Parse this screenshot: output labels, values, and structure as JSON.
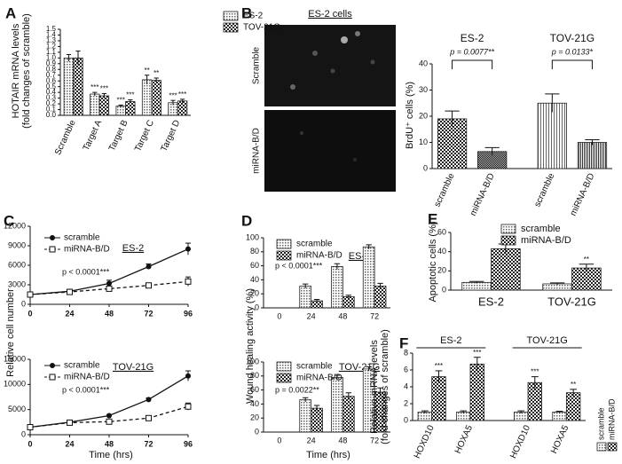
{
  "chart_data": [
    {
      "panel": "A",
      "type": "bar",
      "categories": [
        "Scramble",
        "Target A",
        "Target B",
        "Target C",
        "Target D"
      ],
      "series": [
        {
          "name": "ES-2",
          "fill": "dots",
          "values": [
            1.0,
            0.37,
            0.16,
            0.62,
            0.22
          ],
          "errors": [
            0.06,
            0.03,
            0.02,
            0.08,
            0.04
          ],
          "sig": [
            null,
            "***",
            "***",
            "**",
            "***"
          ]
        },
        {
          "name": "TOV-21G",
          "fill": "checks",
          "values": [
            1.0,
            0.34,
            0.24,
            0.61,
            0.25
          ],
          "errors": [
            0.12,
            0.04,
            0.03,
            0.04,
            0.03
          ],
          "sig": [
            null,
            "***",
            "***",
            "**",
            "***"
          ]
        }
      ],
      "ylim": [
        0,
        1.5
      ],
      "yticks": [
        {
          "value": 0,
          "label": "0.0"
        },
        {
          "value": 0.1,
          "label": "0.1"
        },
        {
          "value": 0.2,
          "label": "0.2"
        },
        {
          "value": 0.3,
          "label": "0.3"
        },
        {
          "value": 0.4,
          "label": "0.4"
        },
        {
          "value": 0.5,
          "label": "0.5"
        },
        {
          "value": 0.6,
          "label": "0.6"
        },
        {
          "value": 0.7,
          "label": "0.7"
        },
        {
          "value": 0.8,
          "label": "0.8"
        },
        {
          "value": 0.9,
          "label": "0.9"
        },
        {
          "value": 1.0,
          "label": "1.0"
        },
        {
          "value": 1.1,
          "label": "1.1"
        },
        {
          "value": 1.2,
          "label": "1.2"
        },
        {
          "value": 1.3,
          "label": "1.3"
        },
        {
          "value": 1.4,
          "label": "1.4"
        },
        {
          "value": 1.5,
          "label": "1.5"
        }
      ],
      "ylabel": [
        "HOTAIR mRNA levels",
        "(fold changes of scramble)"
      ]
    },
    {
      "panel": "B",
      "type": "bar",
      "micrographs": {
        "title": "ES-2 cells",
        "rows": [
          "Scramble",
          "miRNA-B/D"
        ]
      },
      "categories": [
        "scramble",
        "miRNA-B/D",
        "scramble",
        "miRNA-B/D"
      ],
      "series": [
        {
          "fills": [
            "checks",
            "dense",
            "vlines",
            "vlines2"
          ],
          "values": [
            19,
            6.5,
            25,
            10
          ],
          "errors": [
            3,
            1.5,
            3.5,
            1
          ]
        }
      ],
      "groups": [
        {
          "label": "ES-2",
          "p": "p = 0.0077**"
        },
        {
          "label": "TOV-21G",
          "p": "p = 0.0133*"
        }
      ],
      "ylim": [
        0,
        40
      ],
      "yticks": [
        0,
        10,
        20,
        30,
        40
      ],
      "ylabel": "BrdU⁺ cells (%)"
    },
    {
      "panel": "C",
      "type": "line",
      "subtitle": "ES-2",
      "p": "p < 0.0001***",
      "x": [
        0,
        24,
        48,
        72,
        96
      ],
      "xlim": [
        0,
        96
      ],
      "xticks": [
        0,
        24,
        48,
        72,
        96
      ],
      "series": [
        {
          "name": "scramble",
          "marker": "circle",
          "dash": false,
          "values": [
            1500,
            2000,
            3200,
            5800,
            8500
          ],
          "errors": [
            150,
            150,
            500,
            400,
            900
          ]
        },
        {
          "name": "miRNA-B/D",
          "marker": "square",
          "dash": true,
          "values": [
            1500,
            1900,
            2400,
            2900,
            3500
          ],
          "errors": [
            150,
            150,
            200,
            300,
            700
          ]
        }
      ],
      "ylim": [
        0,
        12000
      ],
      "yticks": [
        0,
        3000,
        6000,
        9000,
        12000
      ],
      "ylabel": "Relative cell number"
    },
    {
      "type": "line",
      "subtitle": "TOV-21G",
      "p": "p < 0.0001***",
      "x": [
        0,
        24,
        48,
        72,
        96
      ],
      "xlim": [
        0,
        96
      ],
      "xticks": [
        0,
        24,
        48,
        72,
        96
      ],
      "series": [
        {
          "name": "scramble",
          "marker": "circle",
          "dash": false,
          "values": [
            1500,
            2500,
            3800,
            7000,
            11700
          ],
          "errors": [
            200,
            200,
            200,
            300,
            1000
          ]
        },
        {
          "name": "miRNA-B/D",
          "marker": "square",
          "dash": true,
          "values": [
            1500,
            2400,
            2600,
            3300,
            5600
          ],
          "errors": [
            200,
            200,
            200,
            300,
            700
          ]
        }
      ],
      "ylim": [
        0,
        15000
      ],
      "yticks": [
        0,
        5000,
        10000,
        15000
      ],
      "xlabel": "Time (hrs)"
    },
    {
      "panel": "D",
      "type": "bar",
      "subtitle": "ES-2",
      "p": "p < 0.0001***",
      "categories": [
        "0",
        "24",
        "48",
        "72"
      ],
      "series": [
        {
          "name": "scramble",
          "fill": "dots",
          "values": [
            null,
            31,
            59,
            87
          ],
          "errors": [
            null,
            3,
            4,
            3
          ]
        },
        {
          "name": "miRNA-B/D",
          "fill": "checks",
          "values": [
            null,
            10,
            16,
            31
          ],
          "errors": [
            null,
            2,
            2,
            4
          ]
        }
      ],
      "ylim": [
        0,
        100
      ],
      "yticks": [
        0,
        20,
        40,
        60,
        80,
        100
      ],
      "ylabel": "Wound healing activity (%)"
    },
    {
      "type": "bar",
      "subtitle": "TOV-21G",
      "p": "p = 0.0022**",
      "categories": [
        "0",
        "24",
        "48",
        "72"
      ],
      "series": [
        {
          "name": "scramble",
          "fill": "dots",
          "values": [
            null,
            46,
            78,
            90
          ],
          "errors": [
            null,
            3,
            3,
            3
          ]
        },
        {
          "name": "miRNA-B/D",
          "fill": "checks",
          "values": [
            null,
            34,
            51,
            57
          ],
          "errors": [
            null,
            4,
            5,
            6
          ]
        }
      ],
      "ylim": [
        0,
        100
      ],
      "yticks": [
        0,
        20,
        40,
        60,
        80,
        100
      ],
      "xlabel": "Time (hrs)"
    },
    {
      "panel": "E",
      "type": "bar",
      "categories": [
        "ES-2",
        "TOV-21G"
      ],
      "series": [
        {
          "name": "scramble",
          "fill": "dots",
          "values": [
            8,
            6.5
          ],
          "errors": [
            1,
            1
          ]
        },
        {
          "name": "miRNA-B/D",
          "fill": "checks",
          "values": [
            43,
            23
          ],
          "errors": [
            5,
            4
          ],
          "sig": [
            "***",
            "**"
          ]
        }
      ],
      "ylim": [
        0,
        60
      ],
      "yticks": [
        0,
        20,
        40,
        60
      ],
      "ylabel": "Apoptotic cells (%)"
    },
    {
      "panel": "F",
      "type": "bar",
      "categories": [
        "HOXD10",
        "HOXA5",
        "HOXD10",
        "HOXA5"
      ],
      "groups": [
        {
          "label": "ES-2"
        },
        {
          "label": "TOV-21G"
        }
      ],
      "series": [
        {
          "name": "scramble",
          "fill": "dots",
          "values": [
            1,
            1,
            1,
            1
          ],
          "errors": [
            0.15,
            0.15,
            0.15,
            0.1
          ]
        },
        {
          "name": "miRNA-B/D",
          "fill": "checks",
          "values": [
            5.2,
            6.7,
            4.5,
            3.3
          ],
          "errors": [
            0.7,
            0.8,
            0.7,
            0.4
          ],
          "sig": [
            "***",
            "***",
            "***",
            "**"
          ]
        }
      ],
      "ylim": [
        0,
        8
      ],
      "yticks": [
        0,
        2,
        4,
        6,
        8
      ],
      "ylabel": [
        "Relative mRNA levels",
        "(fold changes of scramble)"
      ]
    }
  ]
}
